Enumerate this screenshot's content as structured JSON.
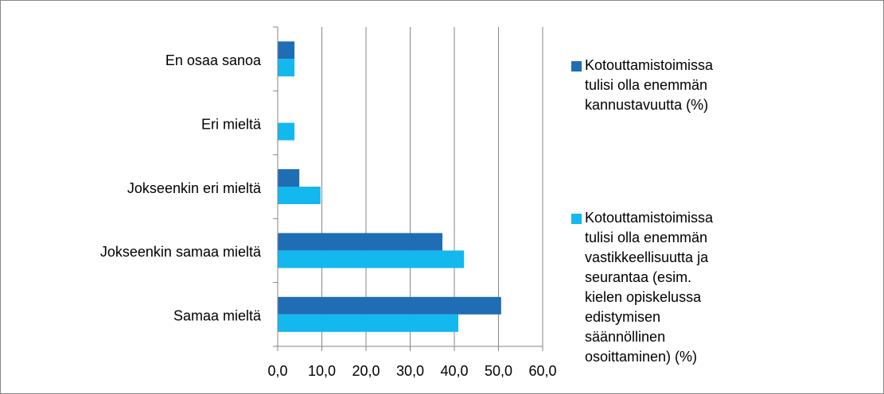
{
  "chart_data": {
    "type": "hbar",
    "categories": [
      "En osaa sanoa",
      "Eri mieltä",
      "Jokseenkin eri mieltä",
      "Jokseenkin samaa mieltä",
      "Samaa mieltä"
    ],
    "series": [
      {
        "name": "Kotouttamistoimissa tulisi olla enemmän kannustavuutta (%)",
        "color": "#1f6db4",
        "values": [
          3.8,
          0,
          4.9,
          37.3,
          50.6
        ]
      },
      {
        "name": "Kotouttamistoimissa tulisi olla enemmän vastikkeellisuutta ja seurantaa (esim. kielen opiskelussa edistymisen säännöllinen osoittaminen) (%)",
        "color": "#12b8ee",
        "values": [
          3.8,
          3.8,
          9.7,
          42.2,
          40.9
        ]
      }
    ],
    "xlim": [
      0,
      60
    ],
    "xticks": [
      {
        "value": 0,
        "label": "0,0"
      },
      {
        "value": 10,
        "label": "10,0"
      },
      {
        "value": 20,
        "label": "20,0"
      },
      {
        "value": 30,
        "label": "30,0"
      },
      {
        "value": 40,
        "label": "40,0"
      },
      {
        "value": 50,
        "label": "50,0"
      },
      {
        "value": 60,
        "label": "60,0"
      }
    ],
    "grid": true
  }
}
